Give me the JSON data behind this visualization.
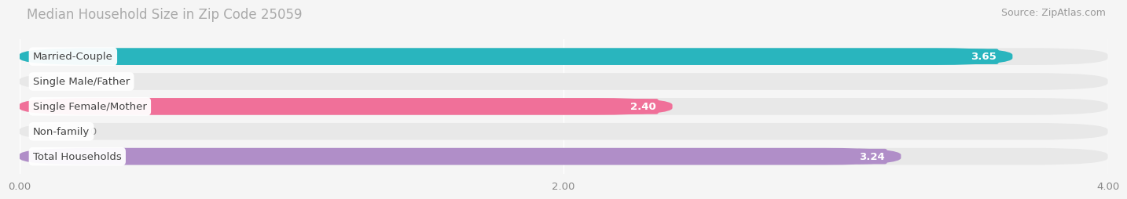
{
  "title": "Median Household Size in Zip Code 25059",
  "source": "Source: ZipAtlas.com",
  "categories": [
    "Married-Couple",
    "Single Male/Father",
    "Single Female/Mother",
    "Non-family",
    "Total Households"
  ],
  "values": [
    3.65,
    0.0,
    2.4,
    0.0,
    3.24
  ],
  "bar_colors": [
    "#29b5be",
    "#a8bde8",
    "#f07099",
    "#f7c99e",
    "#b08ec8"
  ],
  "xlim": [
    0,
    4.0
  ],
  "xticks": [
    0.0,
    2.0,
    4.0
  ],
  "xtick_labels": [
    "0.00",
    "2.00",
    "4.00"
  ],
  "background_color": "#f5f5f5",
  "bar_bg_color": "#e8e8e8",
  "title_fontsize": 12,
  "label_fontsize": 9.5,
  "value_fontsize": 9.5,
  "source_fontsize": 9
}
